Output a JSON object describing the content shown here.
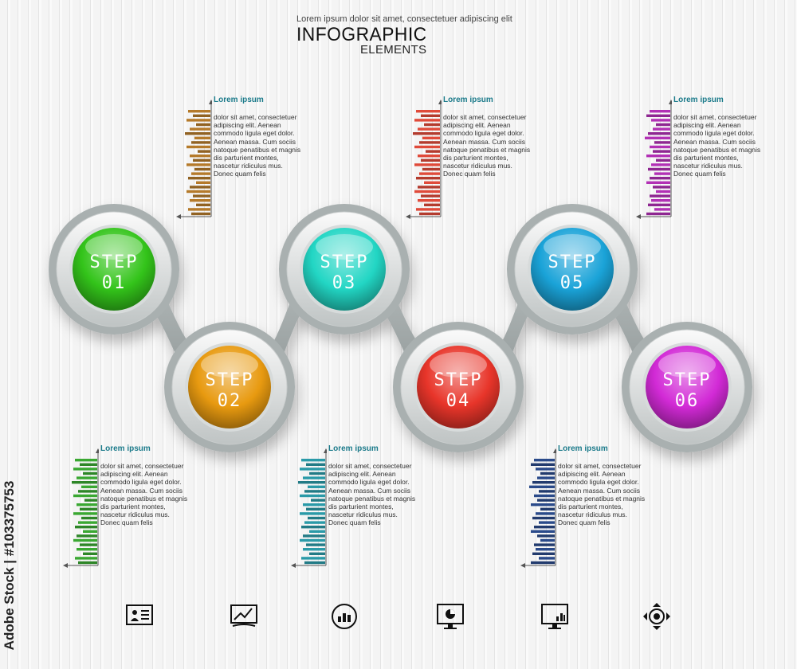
{
  "header": {
    "subtitle": "Lorem ipsum dolor sit amet, consectetuer adipiscing elit",
    "title": "INFOGRAPHIC",
    "title2": "ELEMENTS"
  },
  "watermark": "Adobe Stock | #103375753",
  "steps": [
    {
      "label": "STEP",
      "number": "01",
      "color": "#33c41a"
    },
    {
      "label": "STEP",
      "number": "02",
      "color": "#e89a10"
    },
    {
      "label": "STEP",
      "number": "03",
      "color": "#22d6c4"
    },
    {
      "label": "STEP",
      "number": "04",
      "color": "#e8352a"
    },
    {
      "label": "STEP",
      "number": "05",
      "color": "#1aa3d8"
    },
    {
      "label": "STEP",
      "number": "06",
      "color": "#d22ad6"
    }
  ],
  "infoboxes": [
    {
      "title": "Lorem ipsum",
      "text": "dolor sit amet, consectetuer adipiscing elit. Aenean commodo ligula eget dolor. Aenean massa. Cum sociis natoque penatibus et magnis dis parturient montes, nascetur ridiculus mus. Donec quam felis",
      "color": "#b57a2a"
    },
    {
      "title": "Lorem ipsum",
      "text": "dolor sit amet, consectetuer adipiscing elit. Aenean commodo ligula eget dolor. Aenean massa. Cum sociis natoque penatibus et magnis dis parturient montes, nascetur ridiculus mus. Donec quam felis",
      "color": "#e04a3a"
    },
    {
      "title": "Lorem ipsum",
      "text": "dolor sit amet, consectetuer adipiscing elit. Aenean commodo ligula eget dolor. Aenean massa. Cum sociis natoque penatibus et magnis dis parturient montes, nascetur ridiculus mus. Donec quam felis",
      "color": "#b230b5"
    },
    {
      "title": "Lorem ipsum",
      "text": "dolor sit amet, consectetuer adipiscing elit. Aenean commodo ligula eget dolor. Aenean massa. Cum sociis natoque penatibus et magnis dis parturient montes, nascetur ridiculus mus. Donec quam felis",
      "color": "#3aa832"
    },
    {
      "title": "Lorem ipsum",
      "text": "dolor sit amet, consectetuer adipiscing elit. Aenean commodo ligula eget dolor. Aenean massa. Cum sociis natoque penatibus et magnis dis parturient montes, nascetur ridiculus mus. Donec quam felis",
      "color": "#2a9aa8"
    },
    {
      "title": "Lorem ipsum",
      "text": "dolor sit amet, consectetuer adipiscing elit. Aenean commodo ligula eget dolor. Aenean massa. Cum sociis natoque penatibus et magnis dis parturient montes, nascetur ridiculus mus. Donec quam felis",
      "color": "#2a4a8a"
    }
  ],
  "icons": [
    "presentation-icon",
    "chart-screen-icon",
    "gauge-chart-icon",
    "monitor-pie-icon",
    "monitor-bar-icon",
    "cycle-arrows-icon"
  ]
}
